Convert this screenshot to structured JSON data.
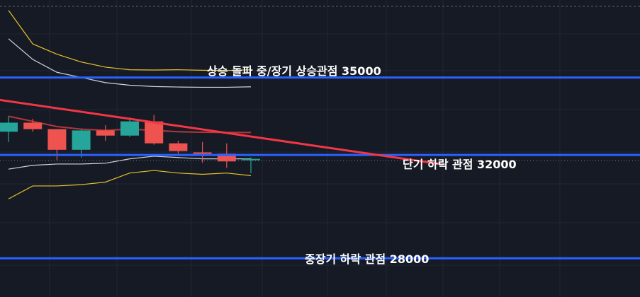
{
  "chart_data": {
    "type": "candlestick",
    "title": "",
    "xlabel": "",
    "ylabel": "",
    "grid": true,
    "ylim": [
      26500,
      38000
    ],
    "colors": {
      "background": "#161a25",
      "grid": "#232734",
      "up": "#26a69a",
      "down": "#ef5350",
      "level": "#2962ff",
      "trendline": "#f23645",
      "moving_average": "#b2383a",
      "band_inner": "#d1d4dc",
      "band_outer": "#e6c229",
      "dotted": "#787b86"
    },
    "candles": [
      {
        "open": 32900,
        "high": 33500,
        "low": 32500,
        "close": 33250
      },
      {
        "open": 33250,
        "high": 33400,
        "low": 32900,
        "close": 33000
      },
      {
        "open": 33000,
        "high": 33000,
        "low": 31800,
        "close": 32200
      },
      {
        "open": 32200,
        "high": 33000,
        "low": 31900,
        "close": 32950
      },
      {
        "open": 32950,
        "high": 33150,
        "low": 32550,
        "close": 32750
      },
      {
        "open": 32750,
        "high": 33450,
        "low": 32700,
        "close": 33300
      },
      {
        "open": 33300,
        "high": 33550,
        "low": 32400,
        "close": 32450
      },
      {
        "open": 32450,
        "high": 32550,
        "low": 32050,
        "close": 32150
      },
      {
        "open": 32100,
        "high": 32500,
        "low": 31700,
        "close": 32050
      },
      {
        "open": 32050,
        "high": 32450,
        "low": 31500,
        "close": 31750
      },
      {
        "open": 31850,
        "high": 31900,
        "low": 31300,
        "close": 31850
      }
    ],
    "moving_average": [
      33500,
      33300,
      33100,
      33000,
      32950,
      33000,
      32950,
      32900,
      32880,
      32870,
      32870
    ],
    "bollinger_inner_upper": [
      36500,
      35700,
      35200,
      35000,
      34800,
      34700,
      34650,
      34630,
      34620,
      34620,
      34640
    ],
    "bollinger_inner_lower": [
      31450,
      31600,
      31650,
      31650,
      31680,
      31850,
      31950,
      31900,
      31850,
      31850,
      31850
    ],
    "bollinger_outer_upper": [
      37600,
      36300,
      35900,
      35600,
      35400,
      35300,
      35290,
      35300,
      35280,
      35270,
      35300
    ],
    "bollinger_outer_lower": [
      30300,
      30800,
      30800,
      30850,
      30950,
      31300,
      31400,
      31300,
      31250,
      31300,
      31200
    ],
    "trendline": {
      "start": {
        "index": -0.5,
        "value": 34150
      },
      "end": {
        "index": 17.8,
        "value": 31650
      }
    },
    "dotted_line": 32000,
    "levels": [
      {
        "value": 35000,
        "label": "상승 돌파 중/장기 상승관점 35000"
      },
      {
        "value": 32000,
        "label": "단기 하락 관점 32000"
      },
      {
        "value": 28000,
        "label": "중장기 하락 관점 28000"
      }
    ]
  }
}
